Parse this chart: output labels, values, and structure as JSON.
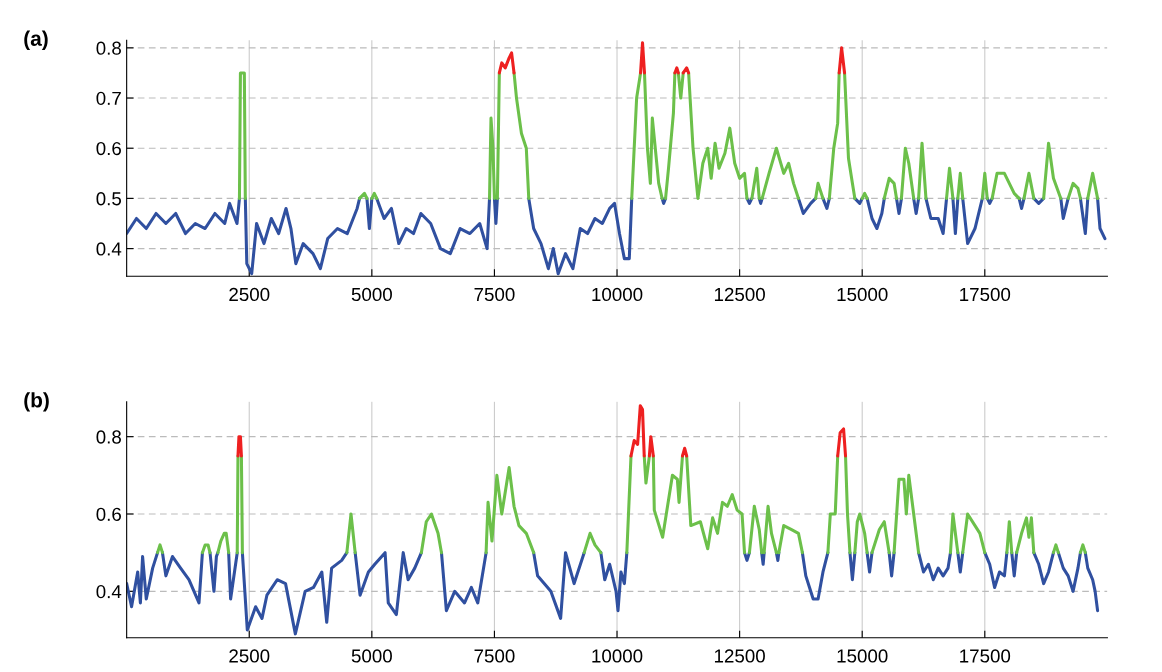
{
  "chart_data": [
    {
      "type": "line",
      "title": "(a)",
      "xlim": [
        0,
        20000
      ],
      "ylim": [
        0.345,
        0.815
      ],
      "xticks": [
        2500,
        5000,
        7500,
        10000,
        12500,
        15000,
        17500
      ],
      "yticks": [
        0.4,
        0.5,
        0.6,
        0.7,
        0.8
      ],
      "grid": true,
      "line_style": "solid",
      "series": [
        {
          "color": "#3050a0",
          "x": [
            0,
            200,
            400,
            600,
            800,
            1000,
            1200,
            1400,
            1600,
            1800,
            2000,
            2100,
            2250,
            2300,
            2360,
            2420,
            2450,
            2550,
            2650,
            2800,
            2950,
            3100,
            3250,
            3350,
            3450,
            3600,
            3800,
            3950,
            4100,
            4300,
            4500,
            4700,
            4750,
            4820,
            4900,
            4950,
            5000,
            5050,
            5100,
            5250,
            5400,
            5550,
            5700,
            5850,
            6000,
            6200,
            6400,
            6600,
            6800,
            7000,
            7200,
            7350,
            7400,
            7450,
            7500,
            7530,
            7560,
            7900,
            8200,
            8300,
            8450,
            8600,
            8700,
            8800,
            8950,
            9100,
            9250,
            9400,
            9550,
            9700,
            9850,
            9950,
            10050,
            10150,
            10250,
            10300,
            10600,
            10920,
            10950,
            10990,
            11800,
            12650,
            12700,
            12750,
            12820,
            12900,
            12930,
            12960,
            13300,
            13700,
            13800,
            13950,
            14050,
            14120,
            14200,
            14280,
            14330,
            14600,
            14850,
            14950,
            15000,
            15050,
            15100,
            15200,
            15300,
            15400,
            15450,
            15600,
            15700,
            15750,
            15800,
            15900,
            16050,
            16100,
            16150,
            16220,
            16300,
            16400,
            16550,
            16650,
            16720,
            16780,
            16850,
            16900,
            16950,
            17000,
            17050,
            17150,
            17300,
            17450,
            17500,
            17550,
            17600,
            17650,
            17900,
            18200,
            18250,
            18300,
            18400,
            18500,
            18600,
            18700,
            18800,
            19050,
            19100,
            19200,
            19300,
            19450,
            19550,
            19600,
            19700,
            19800,
            19850,
            19950
          ],
          "values": [
            0.43,
            0.46,
            0.44,
            0.47,
            0.45,
            0.47,
            0.43,
            0.45,
            0.44,
            0.47,
            0.45,
            0.49,
            0.45,
            0.5,
            null,
            0.5,
            0.37,
            0.35,
            0.45,
            0.41,
            0.46,
            0.43,
            0.48,
            0.44,
            0.37,
            0.41,
            0.39,
            0.36,
            0.42,
            0.44,
            0.43,
            0.48,
            0.5,
            null,
            0.5,
            0.44,
            0.5,
            null,
            0.5,
            0.46,
            0.48,
            0.41,
            0.44,
            0.43,
            0.47,
            0.45,
            0.4,
            0.39,
            0.44,
            0.43,
            0.45,
            0.4,
            0.5,
            null,
            0.5,
            0.45,
            0.5,
            null,
            0.5,
            0.44,
            0.41,
            0.36,
            0.4,
            0.35,
            0.39,
            0.36,
            0.44,
            0.43,
            0.46,
            0.45,
            0.48,
            0.49,
            0.43,
            0.38,
            0.38,
            0.5,
            null,
            0.5,
            0.49,
            0.5,
            null,
            0.5,
            0.49,
            0.5,
            null,
            0.5,
            0.49,
            0.5,
            null,
            0.5,
            0.47,
            0.49,
            0.5,
            null,
            0.5,
            0.48,
            0.5,
            null,
            0.5,
            0.49,
            0.5,
            null,
            0.5,
            0.46,
            0.44,
            0.47,
            0.5,
            null,
            0.5,
            0.47,
            0.5,
            null,
            0.5,
            0.47,
            0.5,
            null,
            0.5,
            0.46,
            0.46,
            0.43,
            0.5,
            null,
            0.5,
            0.43,
            0.5,
            null,
            0.5,
            0.41,
            0.44,
            0.5,
            null,
            0.5,
            0.49,
            0.5,
            null,
            0.5,
            0.48,
            0.5,
            null,
            0.5,
            0.49,
            0.5,
            null,
            0.5,
            0.46,
            0.5,
            null,
            0.5,
            0.43,
            0.5,
            null,
            0.5,
            0.44,
            0.42
          ]
        },
        {
          "color": "#6cc04a",
          "x": [
            2300,
            2320,
            2400,
            2420,
            3000,
            4750,
            4850,
            4900,
            4950,
            5000,
            5050,
            5100,
            6000,
            7400,
            7430,
            7470,
            7500,
            7530,
            7560,
            7600,
            7750,
            7900,
            7950,
            8050,
            8150,
            8200,
            9000,
            10300,
            10350,
            10400,
            10480,
            10520,
            10560,
            10620,
            10680,
            10720,
            10780,
            10850,
            10920,
            10950,
            10990,
            11050,
            11150,
            11180,
            11220,
            11250,
            11300,
            11350,
            11400,
            11460,
            11550,
            11650,
            11750,
            11850,
            11920,
            12000,
            12080,
            12200,
            12300,
            12400,
            12500,
            12600,
            12650,
            12700,
            12750,
            12850,
            12900,
            12930,
            12960,
            13100,
            13250,
            13400,
            13500,
            13600,
            13700,
            13900,
            14050,
            14100,
            14200,
            14280,
            14330,
            14420,
            14500,
            14530,
            14580,
            14640,
            14720,
            14800,
            14850,
            14950,
            15000,
            15050,
            15100,
            15300,
            15450,
            15550,
            15650,
            15700,
            15750,
            15800,
            15880,
            15950,
            16050,
            16100,
            16150,
            16220,
            16300,
            16500,
            16720,
            16780,
            16850,
            16900,
            16950,
            17000,
            17050,
            17250,
            17450,
            17500,
            17550,
            17600,
            17650,
            17750,
            17900,
            18100,
            18200,
            18250,
            18300,
            18400,
            18500,
            18600,
            18700,
            18800,
            18900,
            19050,
            19100,
            19200,
            19300,
            19400,
            19450,
            19550,
            19600,
            19700,
            19800
          ],
          "values": [
            0.5,
            0.75,
            0.75,
            0.5,
            null,
            0.5,
            0.51,
            0.5,
            null,
            0.5,
            0.51,
            0.5,
            null,
            0.5,
            0.66,
            0.6,
            0.5,
            null,
            0.5,
            0.75,
            null,
            0.75,
            0.7,
            0.63,
            0.6,
            0.5,
            null,
            0.5,
            0.6,
            0.7,
            0.75,
            null,
            0.75,
            0.6,
            0.53,
            0.66,
            0.6,
            0.53,
            0.5,
            null,
            0.5,
            0.56,
            0.67,
            0.75,
            null,
            0.75,
            0.7,
            0.75,
            null,
            0.75,
            0.6,
            0.5,
            0.57,
            0.6,
            0.54,
            0.61,
            0.56,
            0.59,
            0.64,
            0.57,
            0.54,
            0.55,
            0.5,
            null,
            0.5,
            0.56,
            0.5,
            null,
            0.5,
            0.55,
            0.6,
            0.55,
            0.57,
            0.53,
            0.5,
            null,
            0.5,
            0.53,
            0.5,
            null,
            0.5,
            0.6,
            0.65,
            0.75,
            null,
            0.75,
            0.58,
            0.53,
            0.5,
            null,
            0.5,
            0.51,
            0.5,
            null,
            0.5,
            0.54,
            0.53,
            0.5,
            null,
            0.5,
            0.6,
            0.57,
            0.5,
            null,
            0.5,
            0.61,
            0.5,
            null,
            0.5,
            0.56,
            0.5,
            null,
            0.5,
            0.55,
            0.5,
            null,
            0.5,
            0.55,
            0.5,
            null,
            0.5,
            0.55,
            0.55,
            0.51,
            0.5,
            null,
            0.5,
            0.55,
            0.5,
            null,
            0.5,
            0.61,
            0.54,
            0.5,
            null,
            0.5,
            0.53,
            0.52,
            0.5,
            null,
            0.5,
            0.55,
            0.5
          ]
        },
        {
          "color": "#ee2020",
          "x": [
            7600,
            7650,
            7720,
            7800,
            7850,
            7900,
            9000,
            10480,
            10520,
            10560,
            10900,
            11180,
            11220,
            11250,
            11300,
            11350,
            11420,
            11460,
            13000,
            14530,
            14580,
            14640
          ],
          "values": [
            0.75,
            0.77,
            0.76,
            0.78,
            0.79,
            0.75,
            null,
            0.75,
            0.81,
            0.75,
            null,
            0.75,
            0.76,
            0.75,
            null,
            0.75,
            0.76,
            0.75,
            null,
            0.75,
            0.8,
            0.75
          ]
        }
      ]
    },
    {
      "type": "line",
      "title": "(b)",
      "xlim": [
        0,
        20000
      ],
      "ylim": [
        0.28,
        0.89
      ],
      "xticks": [
        2500,
        5000,
        7500,
        10000,
        12500,
        15000,
        17500
      ],
      "yticks": [
        0.4,
        0.6,
        0.8
      ],
      "grid": true,
      "line_style": "solid",
      "series": [
        {
          "color": "#3050a0",
          "x": [
            0,
            100,
            225,
            280,
            325,
            400,
            530,
            630,
            680,
            730,
            800,
            935,
            1100,
            1270,
            1475,
            1545,
            1620,
            1700,
            1780,
            1830,
            1860,
            1950,
            2080,
            2120,
            2255,
            2300,
            2360,
            2460,
            2630,
            2760,
            2860,
            3070,
            3240,
            3440,
            3640,
            3810,
            3980,
            4080,
            4180,
            4385,
            4490,
            4575,
            4660,
            4760,
            4930,
            5060,
            5270,
            5335,
            5500,
            5640,
            5740,
            5875,
            6010,
            6215,
            6420,
            6520,
            6690,
            6890,
            7030,
            7160,
            7265,
            7330,
            7800,
            8300,
            8380,
            8650,
            8850,
            8950,
            9125,
            9330,
            9500,
            9670,
            9750,
            9850,
            9980,
            10020,
            10080,
            10150,
            10200,
            11000,
            12600,
            12650,
            12700,
            12800,
            12950,
            12980,
            13000,
            13100,
            13250,
            13280,
            13300,
            13500,
            13780,
            13850,
            13950,
            14000,
            14100,
            14200,
            14300,
            14500,
            14750,
            14800,
            14850,
            14950,
            15100,
            15150,
            15200,
            15400,
            15550,
            15600,
            15650,
            15900,
            16150,
            16250,
            16350,
            16450,
            16550,
            16650,
            16750,
            16800,
            16850,
            16950,
            17000,
            17050,
            17300,
            17500,
            17600,
            17700,
            17800,
            17900,
            17950,
            18000,
            18050,
            18100,
            18150,
            18350,
            18500,
            18600,
            18700,
            18800,
            18900,
            18950,
            19000,
            19100,
            19200,
            19300,
            19400,
            19450,
            19500,
            19550,
            19600,
            19700,
            19750,
            19800
          ],
          "values": [
            0.42,
            0.36,
            0.45,
            0.37,
            0.49,
            0.38,
            0.46,
            0.5,
            null,
            0.5,
            0.44,
            0.49,
            0.46,
            0.43,
            0.37,
            0.5,
            null,
            0.5,
            0.4,
            0.49,
            0.5,
            null,
            0.5,
            0.38,
            0.5,
            null,
            0.5,
            0.3,
            0.36,
            0.33,
            0.39,
            0.43,
            0.42,
            0.29,
            0.4,
            0.41,
            0.45,
            0.32,
            0.46,
            0.48,
            0.5,
            null,
            0.5,
            0.39,
            0.45,
            0.47,
            0.5,
            0.37,
            0.34,
            0.5,
            0.43,
            0.46,
            0.5,
            null,
            0.5,
            0.35,
            0.4,
            0.37,
            0.41,
            0.37,
            0.45,
            0.5,
            null,
            0.5,
            0.44,
            0.4,
            0.33,
            0.5,
            0.42,
            0.5,
            null,
            0.5,
            0.43,
            0.47,
            0.4,
            0.35,
            0.45,
            0.42,
            0.5,
            null,
            0.5,
            0.48,
            0.5,
            null,
            0.5,
            0.47,
            0.5,
            null,
            0.5,
            0.48,
            0.5,
            null,
            0.5,
            0.44,
            0.4,
            0.38,
            0.38,
            0.45,
            0.5,
            null,
            0.5,
            0.43,
            0.5,
            null,
            0.5,
            0.45,
            0.5,
            null,
            0.5,
            0.44,
            0.5,
            null,
            0.5,
            0.45,
            0.47,
            0.43,
            0.46,
            0.44,
            0.46,
            0.5,
            null,
            0.5,
            0.45,
            0.5,
            null,
            0.5,
            0.47,
            0.41,
            0.45,
            0.44,
            0.5,
            null,
            0.5,
            0.44,
            0.5,
            null,
            0.5,
            0.47,
            0.42,
            0.45,
            0.5,
            null,
            0.5,
            0.46,
            0.44,
            0.4,
            0.46,
            0.5,
            null,
            0.5,
            0.46,
            0.43,
            0.4,
            0.35
          ]
        },
        {
          "color": "#6cc04a",
          "x": [
            630,
            680,
            730,
            1100,
            1545,
            1600,
            1660,
            1700,
            1780,
            1860,
            1920,
            1990,
            2030,
            2080,
            2200,
            2255,
            2270,
            2300,
            2340,
            2360,
            3000,
            4490,
            4575,
            4660,
            5000,
            6010,
            6110,
            6215,
            6350,
            6420,
            7000,
            7330,
            7370,
            7450,
            7550,
            7650,
            7750,
            7800,
            7900,
            8000,
            8150,
            8300,
            9000,
            9330,
            9450,
            9550,
            9670,
            10000,
            10200,
            10285,
            10400,
            10555,
            10590,
            10660,
            10700,
            10740,
            10760,
            10930,
            11030,
            11130,
            11230,
            11265,
            11335,
            11380,
            11420,
            11505,
            11700,
            11850,
            11950,
            12050,
            12150,
            12250,
            12350,
            12450,
            12550,
            12600,
            12650,
            12700,
            12800,
            12900,
            12950,
            12980,
            13000,
            13080,
            13150,
            13250,
            13280,
            13300,
            13400,
            13550,
            13700,
            13780,
            14000,
            14300,
            14350,
            14450,
            14500,
            14600,
            14660,
            14700,
            14750,
            14800,
            14850,
            14900,
            14950,
            15050,
            15100,
            15150,
            15200,
            15350,
            15450,
            15550,
            15600,
            15650,
            15750,
            15850,
            15900,
            15950,
            16050,
            16150,
            16500,
            16800,
            16850,
            16950,
            17000,
            17050,
            17150,
            17300,
            17400,
            17500,
            17700,
            17950,
            18000,
            18050,
            18100,
            18150,
            18250,
            18350,
            18400,
            18450,
            18500,
            18700,
            18900,
            18950,
            19000,
            19200,
            19450,
            19500,
            19550
          ],
          "values": [
            0.5,
            0.52,
            0.5,
            null,
            0.5,
            0.52,
            0.52,
            0.5,
            null,
            0.5,
            0.53,
            0.55,
            0.55,
            0.5,
            null,
            0.5,
            0.75,
            null,
            0.75,
            0.5,
            null,
            0.5,
            0.6,
            0.5,
            null,
            0.5,
            0.58,
            0.6,
            0.55,
            0.5,
            null,
            0.5,
            0.63,
            0.53,
            0.7,
            0.6,
            0.68,
            0.72,
            0.62,
            0.57,
            0.55,
            0.5,
            null,
            0.5,
            0.55,
            0.52,
            0.5,
            null,
            0.5,
            0.75,
            null,
            0.75,
            0.68,
            0.75,
            null,
            0.75,
            0.61,
            0.54,
            0.62,
            0.7,
            0.69,
            0.63,
            0.75,
            null,
            0.75,
            0.57,
            0.58,
            0.51,
            0.59,
            0.55,
            0.63,
            0.62,
            0.65,
            0.61,
            0.6,
            0.5,
            null,
            0.5,
            0.62,
            0.56,
            0.5,
            null,
            0.5,
            0.62,
            0.55,
            0.5,
            null,
            0.5,
            0.57,
            0.56,
            0.55,
            0.5,
            null,
            0.5,
            0.6,
            0.6,
            0.75,
            null,
            0.75,
            0.6,
            0.5,
            null,
            0.5,
            0.58,
            0.6,
            0.55,
            0.5,
            null,
            0.5,
            0.56,
            0.58,
            0.5,
            null,
            0.5,
            0.69,
            0.69,
            0.6,
            0.7,
            0.6,
            0.5,
            null,
            0.5,
            0.6,
            0.5,
            null,
            0.5,
            0.6,
            0.57,
            0.55,
            0.5,
            null,
            0.5,
            0.58,
            0.5,
            null,
            0.5,
            0.55,
            0.59,
            0.54,
            0.59,
            0.5,
            null,
            0.5,
            0.52,
            0.5,
            null,
            0.5,
            0.52,
            0.5
          ]
        },
        {
          "color": "#ee2020",
          "x": [
            2270,
            2290,
            2320,
            2340,
            5000,
            10285,
            10350,
            10420,
            10475,
            10520,
            10555,
            10600,
            10660,
            10690,
            10740,
            11000,
            11335,
            11380,
            11420,
            13000,
            14500,
            14550,
            14620,
            14660
          ],
          "values": [
            0.75,
            0.8,
            0.8,
            0.75,
            null,
            0.75,
            0.79,
            0.78,
            0.88,
            0.87,
            0.75,
            null,
            0.75,
            0.8,
            0.75,
            null,
            0.75,
            0.77,
            0.75,
            null,
            0.75,
            0.81,
            0.82,
            0.75
          ]
        }
      ]
    }
  ]
}
